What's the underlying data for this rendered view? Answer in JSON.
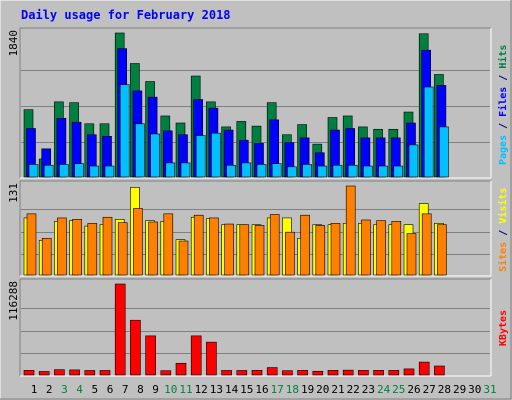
{
  "chart_data": {
    "type": "bar",
    "title": "Daily usage for February 2018",
    "days": [
      "1",
      "2",
      "3",
      "4",
      "5",
      "6",
      "7",
      "8",
      "9",
      "10",
      "11",
      "12",
      "13",
      "14",
      "15",
      "16",
      "17",
      "18",
      "19",
      "20",
      "21",
      "22",
      "23",
      "24",
      "25",
      "26",
      "27",
      "28",
      "29",
      "30",
      "31"
    ],
    "weekend_days": [
      "3",
      "4",
      "10",
      "11",
      "17",
      "18",
      "24",
      "25",
      "31"
    ],
    "panels": [
      {
        "name": "hits-files-pages",
        "ymax_label": "116288",
        "ymax_tick": "1840",
        "ylim": [
          0,
          1840
        ],
        "side_labels": [
          {
            "text": "Pages",
            "color": "#00C0FF"
          },
          {
            "text": " / ",
            "color": "#000080"
          },
          {
            "text": "Files",
            "color": "#0000FF"
          },
          {
            "text": " / ",
            "color": "#000080"
          },
          {
            "text": "Hits",
            "color": "#008040"
          }
        ],
        "series": [
          {
            "name": "Hits",
            "color": "#008040",
            "values": [
              860,
              230,
              960,
              950,
              680,
              680,
              1840,
              1450,
              1220,
              780,
              690,
              1290,
              960,
              640,
              710,
              650,
              950,
              540,
              670,
              420,
              760,
              780,
              640,
              610,
              610,
              830,
              1830,
              1310,
              0,
              0,
              0
            ]
          },
          {
            "name": "Files",
            "color": "#0000FF",
            "values": [
              620,
              360,
              750,
              700,
              540,
              520,
              1640,
              1100,
              1020,
              590,
              540,
              990,
              880,
              600,
              470,
              430,
              730,
              440,
              500,
              310,
              600,
              620,
              500,
              500,
              500,
              690,
              1620,
              1170,
              0,
              0,
              0
            ]
          },
          {
            "name": "Pages",
            "color": "#00C0FF",
            "values": [
              160,
              150,
              160,
              170,
              140,
              140,
              1180,
              680,
              550,
              180,
              180,
              530,
              560,
              150,
              180,
              160,
              170,
              130,
              160,
              140,
              150,
              150,
              140,
              140,
              140,
              410,
              1150,
              640,
              0,
              0,
              0
            ]
          }
        ]
      },
      {
        "name": "visits-sites",
        "ymax_tick": "131",
        "ylim": [
          0,
          131
        ],
        "side_labels": [
          {
            "text": "Sites",
            "color": "#FF8000"
          },
          {
            "text": " / ",
            "color": "#000080"
          },
          {
            "text": "Visits",
            "color": "#FFFF00"
          }
        ],
        "series": [
          {
            "name": "Visits",
            "color": "#FFFF00",
            "values": [
              84,
              51,
              79,
              80,
              72,
              74,
              82,
              129,
              80,
              79,
              52,
              85,
              83,
              74,
              74,
              74,
              84,
              84,
              54,
              74,
              74,
              76,
              76,
              74,
              74,
              74,
              105,
              76,
              0,
              0,
              0
            ]
          },
          {
            "name": "Sites",
            "color": "#FF8000",
            "values": [
              90,
              54,
              84,
              82,
              76,
              85,
              77,
              98,
              78,
              90,
              50,
              88,
              84,
              75,
              74,
              73,
              89,
              63,
              88,
              73,
              76,
              131,
              81,
              80,
              79,
              61,
              90,
              74,
              0,
              0,
              0
            ]
          }
        ]
      },
      {
        "name": "kbytes",
        "ymax_tick": "116288",
        "ylim": [
          0,
          116288
        ],
        "side_labels": [
          {
            "text": "KBytes",
            "color": "#FF0000"
          }
        ],
        "series": [
          {
            "name": "KBytes",
            "color": "#FF0000",
            "values": [
              6000,
              4500,
              6800,
              6500,
              5800,
              5800,
              116288,
              70000,
              50000,
              5500,
              15000,
              50000,
              42000,
              5800,
              5800,
              6000,
              9500,
              5500,
              6000,
              4800,
              6000,
              6200,
              6000,
              6000,
              6000,
              7800,
              16500,
              11500,
              0,
              0,
              0
            ]
          }
        ]
      }
    ]
  }
}
